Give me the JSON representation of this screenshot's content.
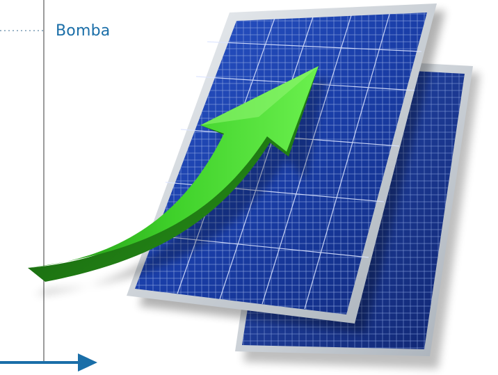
{
  "legend": {
    "label": "Bomba"
  },
  "colors": {
    "axis": "#7a7a7a",
    "arrow": "#1a6ea8",
    "dotted": "#9ab3c7",
    "label": "#1a6ea8",
    "panel_blue": "#1f3a9e",
    "panel_frame": "#c9cfd6",
    "green_arrow": "#3fd12a"
  },
  "icons": {
    "growth": "green-growth-arrow-icon",
    "solar": "solar-panel-icon"
  }
}
